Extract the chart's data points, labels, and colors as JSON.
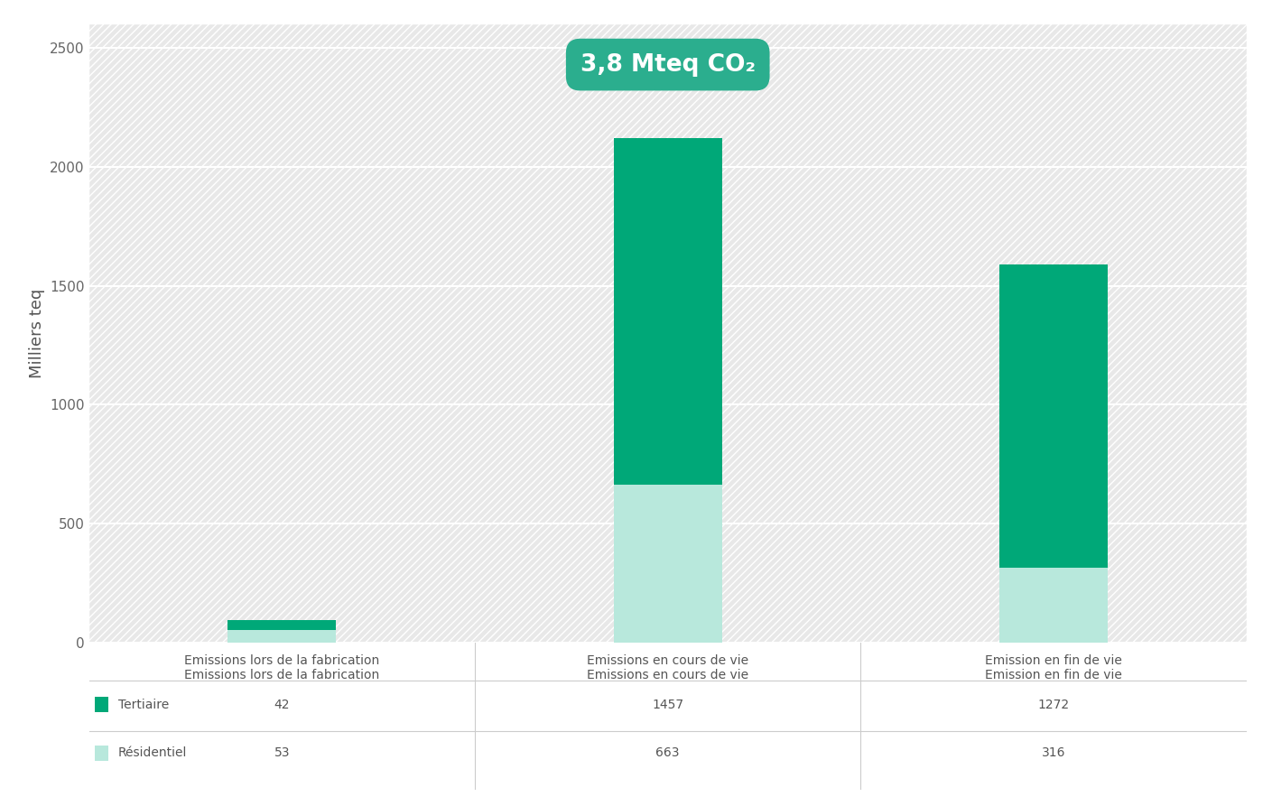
{
  "categories": [
    "Emissions lors de la fabrication",
    "Emissions en cours de vie",
    "Emission en fin de vie"
  ],
  "tertiaire": [
    42,
    1457,
    1272
  ],
  "residentiel": [
    53,
    663,
    316
  ],
  "color_tertiaire": "#00A878",
  "color_residentiel": "#B8E8DC",
  "ylabel": "Milliers teq",
  "ylim": [
    0,
    2600
  ],
  "yticks": [
    0,
    500,
    1000,
    1500,
    2000,
    2500
  ],
  "annotation_text": "3,8 Mteq CO₂",
  "annotation_bg": "#2BAE8E",
  "annotation_text_color": "#ffffff",
  "background_color": "#e8e8e8",
  "bar_width": 0.28,
  "legend_tertiaire": "Tertiaire",
  "legend_residentiel": "Résidentiel",
  "grid_color": "#ffffff",
  "annotation_bar_index": 1
}
